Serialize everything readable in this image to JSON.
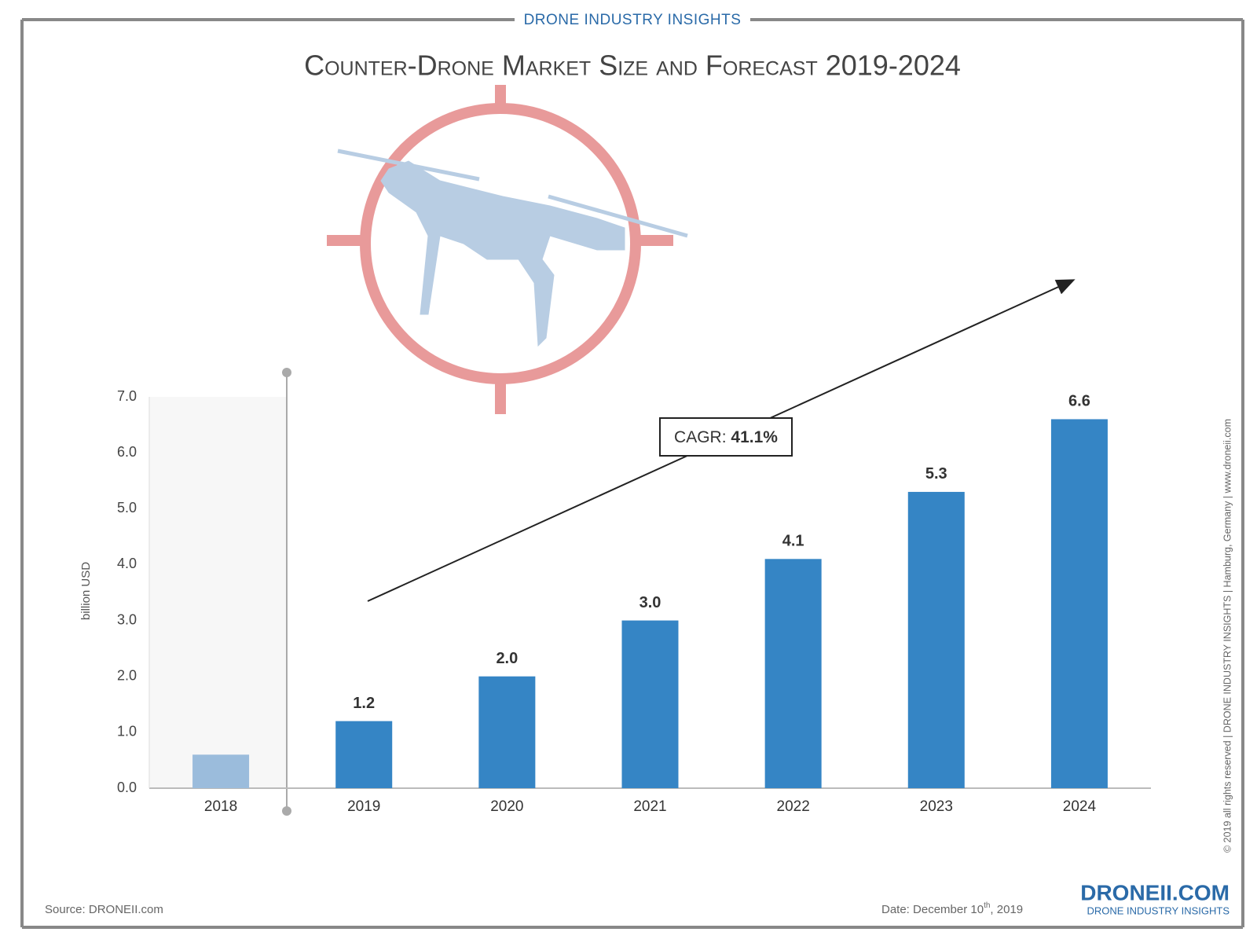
{
  "header": "DRONE INDUSTRY INSIGHTS",
  "chart_data": {
    "type": "bar",
    "title": "Counter-Drone Market Size and Forecast 2019-2024",
    "y_label": "billion USD",
    "categories": [
      "2018",
      "2019",
      "2020",
      "2021",
      "2022",
      "2023",
      "2024"
    ],
    "values": [
      0.6,
      1.2,
      2.0,
      3.0,
      4.1,
      5.3,
      6.6
    ],
    "value_labels": [
      null,
      "1.2",
      "2.0",
      "3.0",
      "4.1",
      "5.3",
      "6.6"
    ],
    "colors": [
      "#9bbcdc",
      "#3585c5",
      "#3585c5",
      "#3585c5",
      "#3585c5",
      "#3585c5",
      "#3585c5"
    ],
    "ylim": [
      0,
      7
    ],
    "yticks": [
      {
        "value": 0,
        "label": "0.0"
      },
      {
        "value": 1,
        "label": "1.0"
      },
      {
        "value": 2,
        "label": "2.0"
      },
      {
        "value": 3,
        "label": "3.0"
      },
      {
        "value": 4,
        "label": "4.0"
      },
      {
        "value": 5,
        "label": "5.0"
      },
      {
        "value": 6,
        "label": "6.0"
      },
      {
        "value": 7,
        "label": "7.0"
      }
    ],
    "grid": false,
    "annotation_label": "CAGR:",
    "annotation_value": "41.1%"
  },
  "footer": {
    "source": "Source: DRONEII.com",
    "date_main": "Date: December 10",
    "date_sup": "th",
    "date_end": ", 2019",
    "logo": "DRONEII.COM",
    "logo_sub": "DRONE INDUSTRY INSIGHTS",
    "side_note": "© 2019 all rights reserved | DRONE INDUSTRY INSIGHTS | Hamburg, Germany | www.droneii.com"
  }
}
